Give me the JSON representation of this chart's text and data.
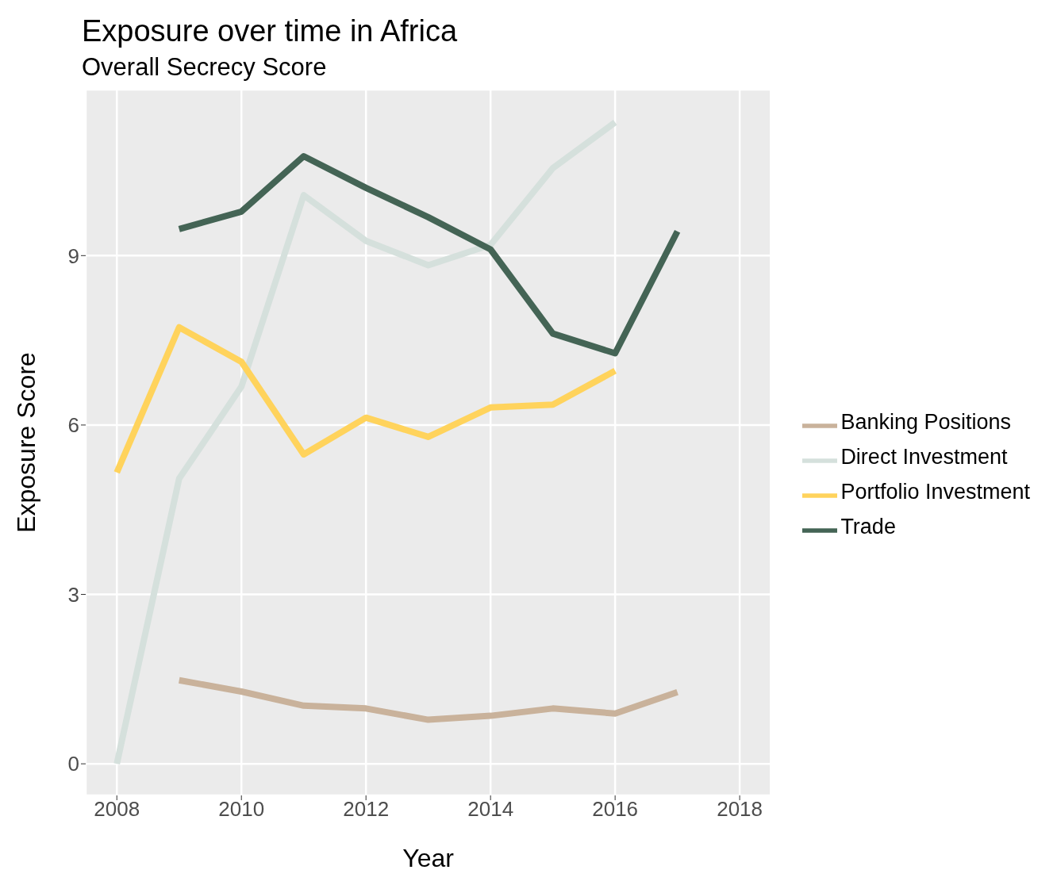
{
  "chart_data": {
    "type": "line",
    "title": "Exposure over time in Africa",
    "subtitle": "Overall Secrecy Score",
    "xlabel": "Year",
    "ylabel": "Exposure Score",
    "x": [
      2008,
      2009,
      2010,
      2011,
      2012,
      2013,
      2014,
      2015,
      2016,
      2017
    ],
    "series": [
      {
        "name": "Banking Positions",
        "color": "#c9b29b",
        "values": [
          null,
          1.48,
          1.28,
          1.03,
          0.98,
          0.78,
          0.85,
          0.98,
          0.89,
          1.27
        ]
      },
      {
        "name": "Direct Investment",
        "color": "#d5e0dc",
        "values": [
          0,
          5.05,
          6.68,
          10.07,
          9.26,
          8.83,
          9.19,
          10.55,
          11.36,
          null
        ]
      },
      {
        "name": "Portfolio Investment",
        "color": "#ffd35c",
        "values": [
          5.16,
          7.73,
          7.12,
          5.48,
          6.13,
          5.79,
          6.31,
          6.36,
          6.96,
          null
        ]
      },
      {
        "name": "Trade",
        "color": "#446455",
        "values": [
          null,
          9.47,
          9.78,
          10.76,
          10.2,
          9.68,
          9.11,
          7.62,
          7.27,
          9.43
        ]
      }
    ],
    "xlim": [
      2007.5,
      2018.5
    ],
    "xticks": [
      2008,
      2010,
      2012,
      2014,
      2016,
      2018
    ],
    "ylim": [
      -0.56,
      11.94
    ],
    "yticks": [
      0,
      3,
      6,
      9
    ],
    "grid": true,
    "legend": "right",
    "marker": "none",
    "line_style": "solid"
  }
}
